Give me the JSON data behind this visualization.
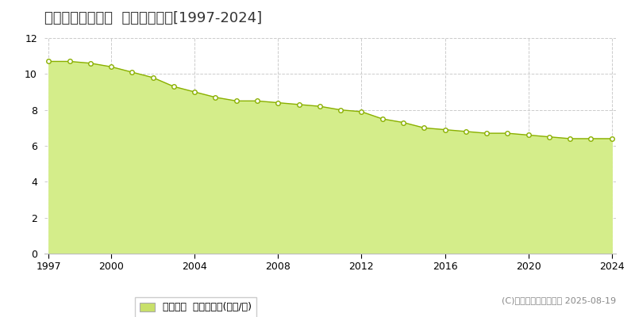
{
  "title": "甘楽郡甘楽町造石  基準地価推移[1997-2024]",
  "years": [
    1997,
    1998,
    1999,
    2000,
    2001,
    2002,
    2003,
    2004,
    2005,
    2006,
    2007,
    2008,
    2009,
    2010,
    2011,
    2012,
    2013,
    2014,
    2015,
    2016,
    2017,
    2018,
    2019,
    2020,
    2021,
    2022,
    2023,
    2024
  ],
  "values": [
    10.7,
    10.7,
    10.6,
    10.4,
    10.1,
    9.8,
    9.3,
    9.0,
    8.7,
    8.5,
    8.5,
    8.4,
    8.3,
    8.2,
    8.0,
    7.9,
    7.5,
    7.3,
    7.0,
    6.9,
    6.8,
    6.7,
    6.7,
    6.6,
    6.5,
    6.4,
    6.4,
    6.4
  ],
  "ylim": [
    0,
    12
  ],
  "yticks": [
    0,
    2,
    4,
    6,
    8,
    10,
    12
  ],
  "xticks": [
    1997,
    2000,
    2004,
    2008,
    2012,
    2016,
    2020,
    2024
  ],
  "fill_color": "#d4ed8a",
  "line_color": "#8ab000",
  "marker_facecolor": "#ffffff",
  "marker_edgecolor": "#8ab000",
  "grid_color": "#cccccc",
  "bg_color": "#ffffff",
  "legend_label": "基準地価  平均坪単価(万円/坪)",
  "legend_swatch_color": "#c8e06a",
  "copyright_text": "(C)土地価格ドットコム 2025-08-19",
  "title_fontsize": 13,
  "axis_fontsize": 9,
  "legend_fontsize": 9,
  "copyright_fontsize": 8
}
